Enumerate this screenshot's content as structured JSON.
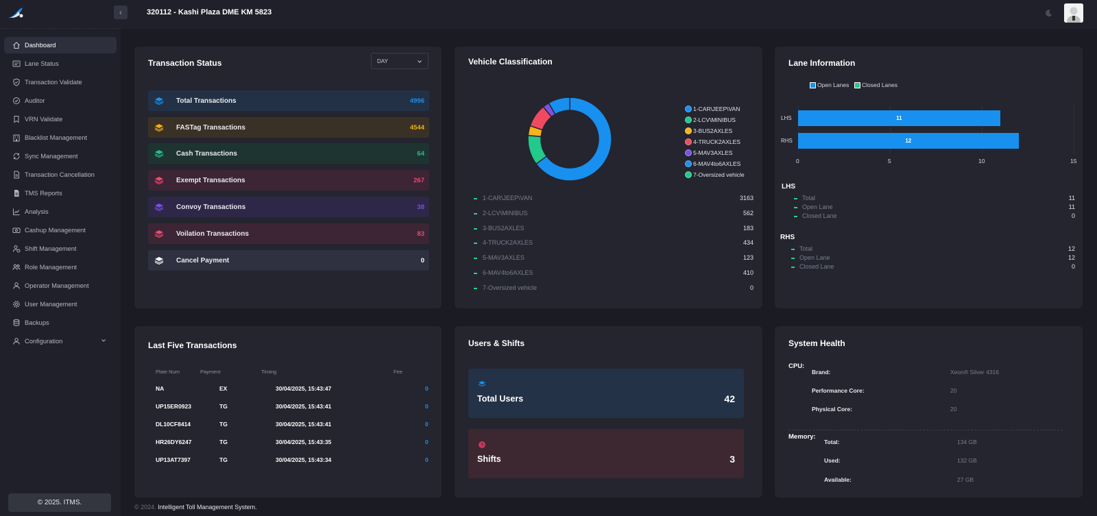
{
  "sidebar": {
    "items": [
      {
        "label": "Dashboard",
        "icon": "home-icon"
      },
      {
        "label": "Lane Status",
        "icon": "list-card-icon"
      },
      {
        "label": "Transaction Validate",
        "icon": "shield-icon"
      },
      {
        "label": "Auditor",
        "icon": "check-circle-icon"
      },
      {
        "label": "VRN Validate",
        "icon": "bookmark-icon"
      },
      {
        "label": "Blacklist Management",
        "icon": "building-icon"
      },
      {
        "label": "Sync Management",
        "icon": "sync-icon"
      },
      {
        "label": "Transaction Cancellation",
        "icon": "document-icon"
      },
      {
        "label": "TMS Reports",
        "icon": "report-icon"
      },
      {
        "label": "Analysis",
        "icon": "chart-line-icon"
      },
      {
        "label": "Cashup Management",
        "icon": "cash-icon"
      },
      {
        "label": "Shift Management",
        "icon": "user-clock-icon"
      },
      {
        "label": "Role Management",
        "icon": "users-icon"
      },
      {
        "label": "Operator Management",
        "icon": "user-icon"
      },
      {
        "label": "User Management",
        "icon": "gear-icon"
      },
      {
        "label": "Backups",
        "icon": "database-icon"
      },
      {
        "label": "Configuration",
        "icon": "user-cog-icon"
      }
    ],
    "footer": "© 2025. ITMS."
  },
  "header": {
    "title": "320112 - Kashi Plaza DME KM 5823"
  },
  "transaction_status": {
    "title": "Transaction Status",
    "period": "DAY",
    "rows": [
      {
        "label": "Total Transactions",
        "value": "4996",
        "color": "#1a8fe8",
        "bg": "#233146"
      },
      {
        "label": "FASTag Transactions",
        "value": "4544",
        "color": "#f2b01c",
        "bg": "#3a3126"
      },
      {
        "label": "Cash Transactions",
        "value": "64",
        "color": "#22c08a",
        "bg": "#1e3431"
      },
      {
        "label": "Exempt Transactions",
        "value": "267",
        "color": "#ec4a6e",
        "bg": "#3c2534"
      },
      {
        "label": "Convoy Transactions",
        "value": "38",
        "color": "#7a4de6",
        "bg": "#2f2747"
      },
      {
        "label": "Voilation Transactions",
        "value": "83",
        "color": "#ec4a6e",
        "bg": "#3c2534"
      },
      {
        "label": "Cancel Payment",
        "value": "0",
        "color": "#ffffff",
        "bg": "#2f3140"
      }
    ]
  },
  "vehicle_classification": {
    "title": "Vehicle Classification",
    "rows": [
      {
        "label": "1-CAR\\JEEP\\VAN",
        "value": "3163",
        "color": "#1890ef"
      },
      {
        "label": "2-LCV\\MINIBUS",
        "value": "562",
        "color": "#22c98a"
      },
      {
        "label": "3-BUS2AXLES",
        "value": "183",
        "color": "#f7b21c"
      },
      {
        "label": "4-TRUCK2AXLES",
        "value": "434",
        "color": "#ef4a62"
      },
      {
        "label": "5-MAV3AXLES",
        "value": "123",
        "color": "#7b52e0"
      },
      {
        "label": "6-MAV4to6AXLES",
        "value": "410",
        "color": "#1890ef"
      },
      {
        "label": "7-Oversized vehicle",
        "value": "0",
        "color": "#22c98a"
      }
    ]
  },
  "chart_data": {
    "type": "bar",
    "orientation": "horizontal",
    "categories": [
      "LHS",
      "RHS"
    ],
    "series": [
      {
        "name": "Open Lanes",
        "values": [
          11,
          12
        ],
        "color": "#1890ef"
      },
      {
        "name": "Closed Lanes",
        "values": [
          0,
          0
        ],
        "color": "#22c98a"
      }
    ],
    "xlim": [
      0,
      15
    ],
    "xticks": [
      "0",
      "5",
      "10",
      "15"
    ],
    "data_labels": [
      "11",
      "12"
    ],
    "legend": "top-left"
  },
  "lane_information": {
    "title": "Lane Information",
    "legend": [
      "Open Lanes",
      "Closed Lanes"
    ],
    "groups": [
      {
        "name": "LHS",
        "rows": [
          {
            "label": "Total",
            "value": "11"
          },
          {
            "label": "Open Lane",
            "value": "11"
          },
          {
            "label": "Closed Lane",
            "value": "0"
          }
        ]
      },
      {
        "name": "RHS",
        "rows": [
          {
            "label": "Total",
            "value": "12"
          },
          {
            "label": "Open Lane",
            "value": "12"
          },
          {
            "label": "Closed Lane",
            "value": "0"
          }
        ]
      }
    ]
  },
  "last_five": {
    "title": "Last Five Transactions",
    "headers": [
      "Plate Num",
      "Payment",
      "Timing",
      "Fee"
    ],
    "rows": [
      {
        "plate": "NA",
        "payment": "EX",
        "timing": "30/04/2025, 15:43:47",
        "fee": "0"
      },
      {
        "plate": "UP15ER0923",
        "payment": "TG",
        "timing": "30/04/2025, 15:43:41",
        "fee": "0"
      },
      {
        "plate": "DL10CF8414",
        "payment": "TG",
        "timing": "30/04/2025, 15:43:41",
        "fee": "0"
      },
      {
        "plate": "HR26DY6247",
        "payment": "TG",
        "timing": "30/04/2025, 15:43:35",
        "fee": "0"
      },
      {
        "plate": "UP13AT7397",
        "payment": "TG",
        "timing": "30/04/2025, 15:43:34",
        "fee": "0"
      }
    ]
  },
  "users_shifts": {
    "title": "Users & Shifts",
    "users_label": "Total Users",
    "users_value": "42",
    "shifts_label": "Shifts",
    "shifts_value": "3"
  },
  "system_health": {
    "title": "System Health",
    "cpu_label": "CPU:",
    "cpu": [
      {
        "key": "Brand:",
        "value": "Xeon® Silver 4316"
      },
      {
        "key": "Performance Core:",
        "value": "20"
      },
      {
        "key": "Physical Core:",
        "value": "20"
      }
    ],
    "memory_label": "Memory:",
    "memory": [
      {
        "key": "Total:",
        "value": "134 GB"
      },
      {
        "key": "Used:",
        "value": "132 GB"
      },
      {
        "key": "Available:",
        "value": "27 GB"
      }
    ]
  },
  "footer": {
    "year": "© 2024.",
    "text": "Intelligent Toll Management System."
  }
}
